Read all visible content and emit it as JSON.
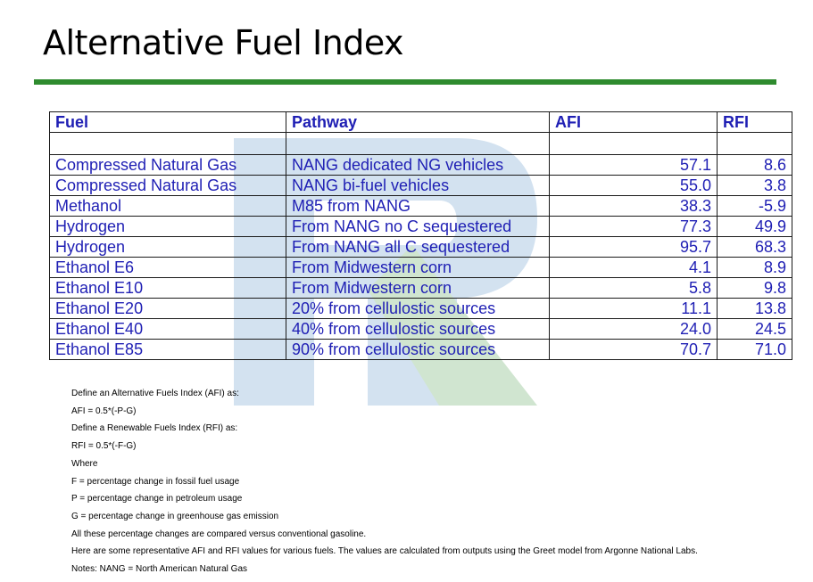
{
  "title": "Alternative Fuel Index",
  "colors": {
    "accent": "#2e8b2e",
    "table_text": "#1f1fb4",
    "watermark": "#3a7fbf"
  },
  "table": {
    "headers": [
      "Fuel",
      "Pathway",
      "AFI",
      "RFI"
    ],
    "rows": [
      {
        "fuel": "Compressed Natural Gas",
        "pathway": "NANG dedicated NG vehicles",
        "afi": "57.1",
        "rfi": "8.6"
      },
      {
        "fuel": "Compressed Natural Gas",
        "pathway": "NANG bi-fuel vehicles",
        "afi": "55.0",
        "rfi": "3.8"
      },
      {
        "fuel": "Methanol",
        "pathway": "M85 from NANG",
        "afi": "38.3",
        "rfi": "-5.9"
      },
      {
        "fuel": "Hydrogen",
        "pathway": "From NANG no C sequestered",
        "afi": "77.3",
        "rfi": "49.9"
      },
      {
        "fuel": "Hydrogen",
        "pathway": "From NANG all C sequestered",
        "afi": "95.7",
        "rfi": "68.3"
      },
      {
        "fuel": "Ethanol E6",
        "pathway": "From Midwestern corn",
        "afi": "4.1",
        "rfi": "8.9"
      },
      {
        "fuel": "Ethanol E10",
        "pathway": "From Midwestern corn",
        "afi": "5.8",
        "rfi": "9.8"
      },
      {
        "fuel": "Ethanol E20",
        "pathway": "20% from cellulostic sources",
        "afi": "11.1",
        "rfi": "13.8"
      },
      {
        "fuel": "Ethanol E40",
        "pathway": "40% from cellulostic sources",
        "afi": "24.0",
        "rfi": "24.5"
      },
      {
        "fuel": "Ethanol E85",
        "pathway": "90% from cellulostic sources",
        "afi": "70.7",
        "rfi": "71.0"
      }
    ]
  },
  "notes": [
    "Define an Alternative Fuels Index (AFI) as:",
    "AFI = 0.5*(-P-G)",
    "Define a Renewable Fuels Index (RFI) as:",
    "RFI = 0.5*(-F-G)",
    "Where",
    "F = percentage change in fossil fuel usage",
    "P = percentage change in petroleum usage",
    "G = percentage change in greenhouse gas emission",
    "All these percentage changes are compared versus conventional gasoline.",
    "Here are some representative AFI and RFI values for various fuels.  The values are calculated from outputs using the Greet model from Argonne National Labs.",
    "Notes:  NANG = North American Natural Gas"
  ]
}
